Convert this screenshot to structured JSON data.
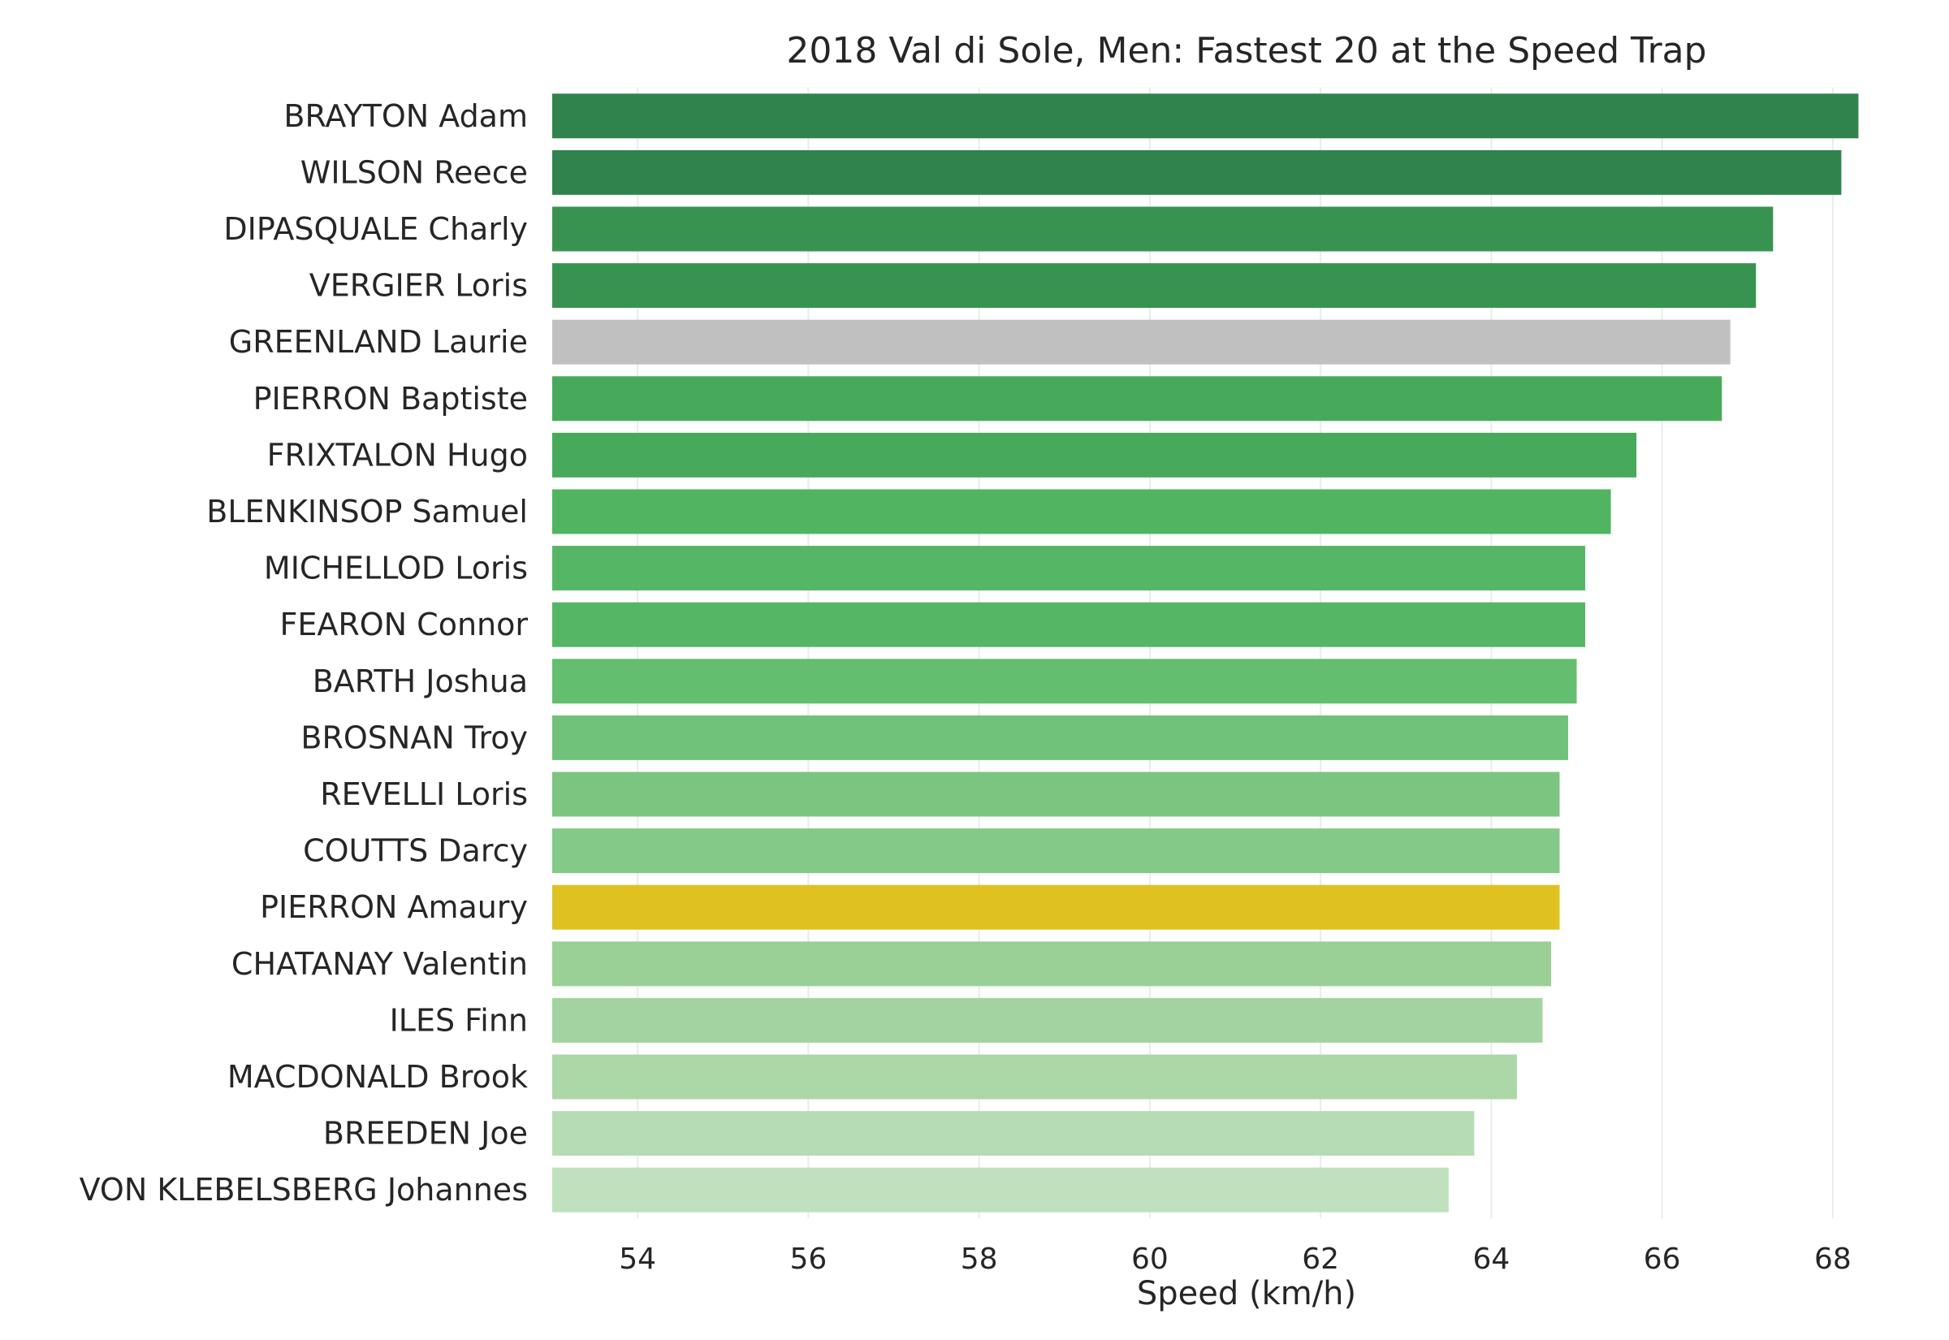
{
  "chart_data": {
    "type": "bar",
    "orientation": "horizontal",
    "title": "2018 Val di Sole, Men: Fastest 20 at the Speed Trap",
    "xlabel": "Speed (km/h)",
    "ylabel": "",
    "xlim": [
      53,
      68.6
    ],
    "xticks": [
      54,
      56,
      58,
      60,
      62,
      64,
      66,
      68
    ],
    "grid": "vertical",
    "legend": "none",
    "categories": [
      "BRAYTON Adam",
      "WILSON Reece",
      "DIPASQUALE Charly",
      "VERGIER Loris",
      "GREENLAND Laurie",
      "PIERRON Baptiste",
      "FRIXTALON Hugo",
      "BLENKINSOP Samuel",
      "MICHELLOD Loris",
      "FEARON Connor",
      "BARTH Joshua",
      "BROSNAN Troy",
      "REVELLI Loris",
      "COUTTS Darcy",
      "PIERRON Amaury",
      "CHATANAY Valentin",
      "ILES Finn",
      "MACDONALD Brook",
      "BREEDEN Joe",
      "VON KLEBELSBERG Johannes"
    ],
    "values": [
      68.3,
      68.1,
      67.3,
      67.1,
      66.8,
      66.7,
      65.7,
      65.4,
      65.1,
      65.1,
      65.0,
      64.9,
      64.8,
      64.8,
      64.8,
      64.7,
      64.6,
      64.3,
      63.8,
      63.5
    ],
    "colors": [
      "#31834e",
      "#31834e",
      "#389350",
      "#389350",
      "#c0c0c0",
      "#46aa5a",
      "#46aa5a",
      "#51b460",
      "#55b665",
      "#55b665",
      "#64be6f",
      "#70c27a",
      "#7bc581",
      "#84c988",
      "#dfc220",
      "#9ad095",
      "#a3d3a0",
      "#acd7a7",
      "#b6dcb3",
      "#bfe1bd"
    ]
  }
}
